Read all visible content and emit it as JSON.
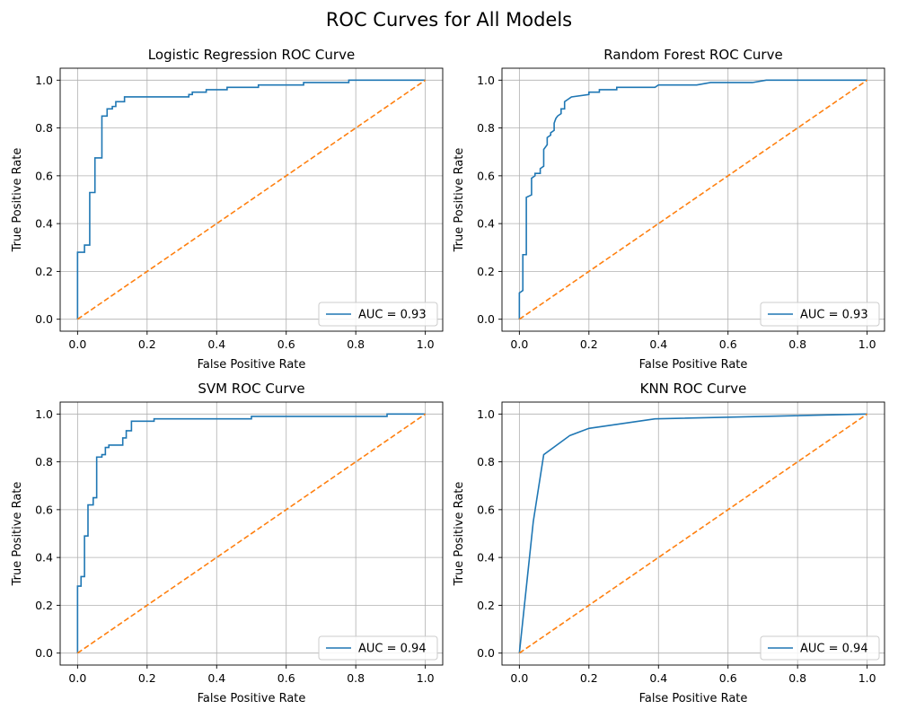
{
  "figure": {
    "title": "ROC Curves for All Models"
  },
  "colors": {
    "roc": "#1f77b4",
    "chance": "#ff7f0e",
    "grid": "#b0b0b0",
    "axis": "#000000"
  },
  "chart_data": [
    {
      "type": "line",
      "title": "Logistic Regression ROC Curve",
      "xlabel": "False Positive Rate",
      "ylabel": "True Positive Rate",
      "xlim": [
        -0.05,
        1.05
      ],
      "ylim": [
        -0.05,
        1.05
      ],
      "xticks": [
        0.0,
        0.2,
        0.4,
        0.6,
        0.8,
        1.0
      ],
      "yticks": [
        0.0,
        0.2,
        0.4,
        0.6,
        0.8,
        1.0
      ],
      "grid": true,
      "legend_position": "lower-right",
      "series": [
        {
          "name": "AUC = 0.93",
          "style": "solid",
          "x": [
            0,
            0,
            0.02,
            0.02,
            0.035,
            0.035,
            0.05,
            0.05,
            0.07,
            0.07,
            0.085,
            0.085,
            0.1,
            0.1,
            0.11,
            0.11,
            0.135,
            0.135,
            0.32,
            0.32,
            0.33,
            0.33,
            0.37,
            0.37,
            0.43,
            0.43,
            0.52,
            0.52,
            0.65,
            0.65,
            0.78,
            0.78,
            1.0
          ],
          "y": [
            0,
            0.28,
            0.28,
            0.31,
            0.31,
            0.53,
            0.53,
            0.675,
            0.675,
            0.85,
            0.85,
            0.88,
            0.88,
            0.89,
            0.89,
            0.91,
            0.91,
            0.93,
            0.93,
            0.94,
            0.94,
            0.95,
            0.95,
            0.96,
            0.96,
            0.97,
            0.97,
            0.98,
            0.98,
            0.99,
            0.99,
            1.0,
            1.0
          ]
        },
        {
          "name": "",
          "style": "dashed",
          "x": [
            0,
            1
          ],
          "y": [
            0,
            1
          ]
        }
      ]
    },
    {
      "type": "line",
      "title": "Random Forest ROC Curve",
      "xlabel": "False Positive Rate",
      "ylabel": "True Positive Rate",
      "xlim": [
        -0.05,
        1.05
      ],
      "ylim": [
        -0.05,
        1.05
      ],
      "xticks": [
        0.0,
        0.2,
        0.4,
        0.6,
        0.8,
        1.0
      ],
      "yticks": [
        0.0,
        0.2,
        0.4,
        0.6,
        0.8,
        1.0
      ],
      "grid": true,
      "legend_position": "lower-right",
      "series": [
        {
          "name": "AUC = 0.93",
          "style": "solid",
          "x": [
            0,
            0,
            0.01,
            0.01,
            0.02,
            0.02,
            0.035,
            0.035,
            0.045,
            0.045,
            0.06,
            0.06,
            0.07,
            0.07,
            0.08,
            0.08,
            0.09,
            0.09,
            0.1,
            0.1,
            0.105,
            0.11,
            0.12,
            0.12,
            0.13,
            0.13,
            0.14,
            0.15,
            0.2,
            0.2,
            0.23,
            0.23,
            0.28,
            0.28,
            0.39,
            0.4,
            0.51,
            0.55,
            0.67,
            0.71,
            1.0
          ],
          "y": [
            0,
            0.11,
            0.12,
            0.27,
            0.27,
            0.51,
            0.52,
            0.59,
            0.6,
            0.61,
            0.61,
            0.63,
            0.64,
            0.71,
            0.73,
            0.76,
            0.77,
            0.78,
            0.79,
            0.82,
            0.84,
            0.85,
            0.86,
            0.88,
            0.88,
            0.91,
            0.92,
            0.93,
            0.94,
            0.95,
            0.95,
            0.96,
            0.96,
            0.97,
            0.97,
            0.98,
            0.98,
            0.99,
            0.99,
            1.0,
            1.0
          ]
        },
        {
          "name": "",
          "style": "dashed",
          "x": [
            0,
            1
          ],
          "y": [
            0,
            1
          ]
        }
      ]
    },
    {
      "type": "line",
      "title": "SVM ROC Curve",
      "xlabel": "False Positive Rate",
      "ylabel": "True Positive Rate",
      "xlim": [
        -0.05,
        1.05
      ],
      "ylim": [
        -0.05,
        1.05
      ],
      "xticks": [
        0.0,
        0.2,
        0.4,
        0.6,
        0.8,
        1.0
      ],
      "yticks": [
        0.0,
        0.2,
        0.4,
        0.6,
        0.8,
        1.0
      ],
      "grid": true,
      "legend_position": "lower-right",
      "series": [
        {
          "name": "AUC = 0.94",
          "style": "solid",
          "x": [
            0,
            0,
            0.01,
            0.01,
            0.02,
            0.02,
            0.03,
            0.03,
            0.045,
            0.045,
            0.055,
            0.055,
            0.07,
            0.07,
            0.08,
            0.08,
            0.09,
            0.09,
            0.1,
            0.1,
            0.13,
            0.13,
            0.14,
            0.14,
            0.155,
            0.155,
            0.22,
            0.22,
            0.5,
            0.5,
            0.89,
            0.89,
            1.0
          ],
          "y": [
            0,
            0.28,
            0.28,
            0.32,
            0.32,
            0.49,
            0.49,
            0.62,
            0.62,
            0.65,
            0.65,
            0.82,
            0.82,
            0.83,
            0.83,
            0.86,
            0.86,
            0.87,
            0.87,
            0.87,
            0.87,
            0.9,
            0.9,
            0.93,
            0.93,
            0.97,
            0.97,
            0.98,
            0.98,
            0.99,
            0.99,
            1.0,
            1.0
          ]
        },
        {
          "name": "",
          "style": "dashed",
          "x": [
            0,
            1
          ],
          "y": [
            0,
            1
          ]
        }
      ]
    },
    {
      "type": "line",
      "title": "KNN ROC Curve",
      "xlabel": "False Positive Rate",
      "ylabel": "True Positive Rate",
      "xlim": [
        -0.05,
        1.05
      ],
      "ylim": [
        -0.05,
        1.05
      ],
      "xticks": [
        0.0,
        0.2,
        0.4,
        0.6,
        0.8,
        1.0
      ],
      "yticks": [
        0.0,
        0.2,
        0.4,
        0.6,
        0.8,
        1.0
      ],
      "grid": true,
      "legend_position": "lower-right",
      "series": [
        {
          "name": "AUC = 0.94",
          "style": "solid",
          "x": [
            0,
            0.04,
            0.07,
            0.145,
            0.2,
            0.39,
            1.0
          ],
          "y": [
            0,
            0.55,
            0.83,
            0.91,
            0.94,
            0.98,
            1.0
          ]
        },
        {
          "name": "",
          "style": "dashed",
          "x": [
            0,
            1
          ],
          "y": [
            0,
            1
          ]
        }
      ]
    }
  ]
}
